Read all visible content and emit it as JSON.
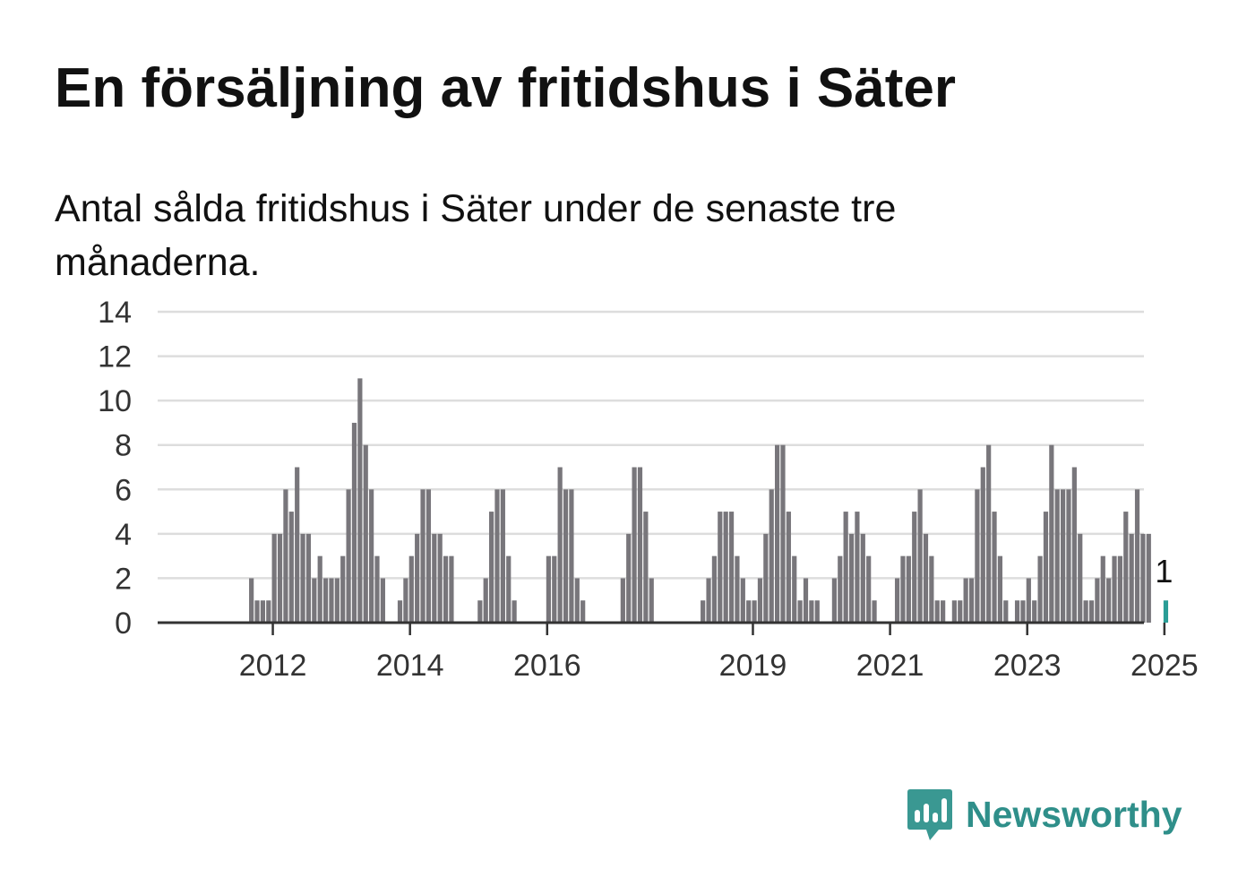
{
  "title": "En försäljning av fritidshus i Säter",
  "subtitle": "Antal sålda fritidshus i Säter under de senaste tre månaderna.",
  "brand": {
    "name": "Newsworthy",
    "icon": "bar-chart-speech-bubble-icon",
    "color": "#3a9892"
  },
  "colors": {
    "bar": "#78767b",
    "highlight": "#2a9d96",
    "grid": "#dddddd",
    "axis": "#333333",
    "text": "#333333"
  },
  "chart_data": {
    "type": "bar",
    "title": "En försäljning av fritidshus i Säter",
    "xlabel": "",
    "ylabel": "",
    "ylim": [
      0,
      14
    ],
    "yticks": [
      0,
      2,
      4,
      6,
      8,
      10,
      12,
      14
    ],
    "xticks": [
      "2012",
      "2014",
      "2016",
      "2019",
      "2021",
      "2023",
      "2025"
    ],
    "grid": true,
    "categories": [
      "2011-01",
      "2011-02",
      "2011-03",
      "2011-04",
      "2011-05",
      "2011-06",
      "2011-07",
      "2011-08",
      "2011-09",
      "2011-10",
      "2011-11",
      "2011-12",
      "2012-01",
      "2012-02",
      "2012-03",
      "2012-04",
      "2012-05",
      "2012-06",
      "2012-07",
      "2012-08",
      "2012-09",
      "2012-10",
      "2012-11",
      "2012-12",
      "2013-01",
      "2013-02",
      "2013-03",
      "2013-04",
      "2013-05",
      "2013-06",
      "2013-07",
      "2013-08",
      "2013-09",
      "2013-10",
      "2013-11",
      "2013-12",
      "2014-01",
      "2014-02",
      "2014-03",
      "2014-04",
      "2014-05",
      "2014-06",
      "2014-07",
      "2014-08",
      "2014-09",
      "2014-10",
      "2014-11",
      "2014-12",
      "2015-01",
      "2015-02",
      "2015-03",
      "2015-04",
      "2015-05",
      "2015-06",
      "2015-07",
      "2015-08",
      "2015-09",
      "2015-10",
      "2015-11",
      "2015-12",
      "2016-01",
      "2016-02",
      "2016-03",
      "2016-04",
      "2016-05",
      "2016-06",
      "2016-07",
      "2016-08",
      "2016-09",
      "2016-10",
      "2016-11",
      "2016-12",
      "2017-01",
      "2017-02",
      "2017-03",
      "2017-04",
      "2017-05",
      "2017-06",
      "2017-07",
      "2017-08",
      "2017-09",
      "2017-10",
      "2017-11",
      "2017-12",
      "2018-01",
      "2018-02",
      "2018-03",
      "2018-04",
      "2018-05",
      "2018-06",
      "2018-07",
      "2018-08",
      "2018-09",
      "2018-10",
      "2018-11",
      "2018-12",
      "2019-01",
      "2019-02",
      "2019-03",
      "2019-04",
      "2019-05",
      "2019-06",
      "2019-07",
      "2019-08",
      "2019-09",
      "2019-10",
      "2019-11",
      "2019-12",
      "2020-01",
      "2020-02",
      "2020-03",
      "2020-04",
      "2020-05",
      "2020-06",
      "2020-07",
      "2020-08",
      "2020-09",
      "2020-10",
      "2020-11",
      "2020-12",
      "2021-01",
      "2021-02",
      "2021-03",
      "2021-04",
      "2021-05",
      "2021-06",
      "2021-07",
      "2021-08",
      "2021-09",
      "2021-10",
      "2021-11",
      "2021-12",
      "2022-01",
      "2022-02",
      "2022-03",
      "2022-04",
      "2022-05",
      "2022-06",
      "2022-07",
      "2022-08",
      "2022-09",
      "2022-10",
      "2022-11",
      "2022-12",
      "2023-01",
      "2023-02",
      "2023-03",
      "2023-04",
      "2023-05",
      "2023-06",
      "2023-07",
      "2023-08",
      "2023-09",
      "2023-10",
      "2023-11",
      "2023-12",
      "2024-01",
      "2024-02",
      "2024-03",
      "2024-04",
      "2024-05",
      "2024-06",
      "2024-07",
      "2024-08",
      "2024-09",
      "2024-10",
      "2024-11",
      "2024-12",
      "2025-01"
    ],
    "values": [
      0,
      0,
      0,
      0,
      0,
      0,
      0,
      0,
      2,
      1,
      1,
      1,
      4,
      4,
      6,
      5,
      7,
      4,
      4,
      2,
      3,
      2,
      2,
      2,
      3,
      6,
      9,
      11,
      8,
      6,
      3,
      2,
      0,
      0,
      1,
      2,
      3,
      4,
      6,
      6,
      4,
      4,
      3,
      3,
      0,
      0,
      0,
      0,
      1,
      2,
      5,
      6,
      6,
      3,
      1,
      0,
      0,
      0,
      0,
      0,
      3,
      3,
      7,
      6,
      6,
      2,
      1,
      0,
      0,
      0,
      0,
      0,
      0,
      2,
      4,
      7,
      7,
      5,
      2,
      0,
      0,
      0,
      0,
      0,
      0,
      0,
      0,
      1,
      2,
      3,
      5,
      5,
      5,
      3,
      2,
      1,
      1,
      2,
      4,
      6,
      8,
      8,
      5,
      3,
      1,
      2,
      1,
      1,
      0,
      0,
      2,
      3,
      5,
      4,
      5,
      4,
      3,
      1,
      0,
      0,
      0,
      2,
      3,
      3,
      5,
      6,
      4,
      3,
      1,
      1,
      0,
      1,
      1,
      2,
      2,
      6,
      7,
      8,
      5,
      3,
      1,
      0,
      1,
      1,
      2,
      1,
      3,
      5,
      8,
      6,
      6,
      6,
      7,
      4,
      1,
      1,
      2,
      3,
      2,
      3,
      3,
      5,
      4,
      6,
      4,
      4,
      0,
      0,
      1
    ],
    "highlight": {
      "category": "2025-01",
      "value": 1,
      "label": "1"
    }
  }
}
